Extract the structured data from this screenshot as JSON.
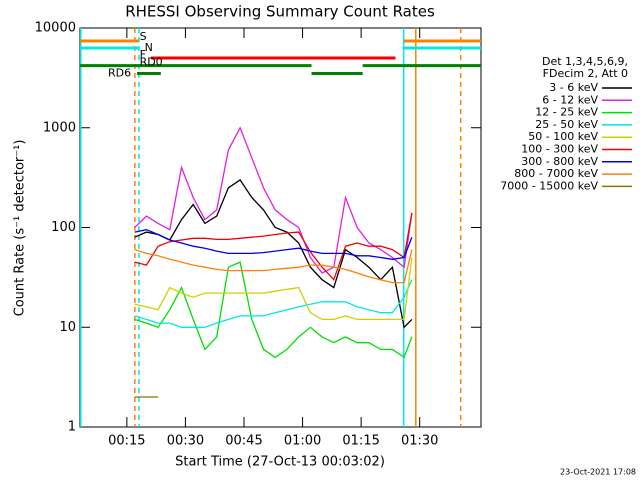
{
  "chart_data": {
    "type": "line",
    "title": "RHESSI Observing Summary Count Rates",
    "x_label": "Start Time (27-Oct-13 00:03:02)",
    "y_label": "Count Rate (s⁻¹ detector⁻¹)",
    "legend_header": [
      "Det 1,3,4,5,6,9,",
      "FDecim 2, Att 0"
    ],
    "footer": "23-Oct-2021 17:08",
    "y_log": true,
    "xlim": [
      3,
      105.7
    ],
    "ylim": [
      1,
      10000
    ],
    "xticks": [
      {
        "value": 15,
        "label": "00:15"
      },
      {
        "value": 30,
        "label": "00:30"
      },
      {
        "value": 45,
        "label": "00:45"
      },
      {
        "value": 60,
        "label": "01:00"
      },
      {
        "value": 75,
        "label": "01:15"
      },
      {
        "value": 90,
        "label": "01:30"
      }
    ],
    "yticks": [
      1,
      10,
      100,
      1000,
      10000
    ],
    "x": [
      17,
      20,
      23,
      26,
      29,
      32,
      35,
      38,
      41,
      44,
      47,
      50,
      53,
      56,
      59,
      62,
      65,
      68,
      71,
      74,
      77,
      80,
      83,
      86,
      88
    ],
    "series": [
      {
        "name": "3 - 6 keV",
        "color": "#000000",
        "values": [
          80,
          90,
          85,
          75,
          120,
          170,
          110,
          130,
          250,
          300,
          200,
          150,
          100,
          90,
          70,
          40,
          30,
          25,
          60,
          50,
          40,
          30,
          40,
          10,
          12
        ]
      },
      {
        "name": "6 - 12 keV",
        "color": "#e020e0",
        "values": [
          100,
          130,
          110,
          95,
          400,
          200,
          120,
          150,
          600,
          1000,
          500,
          250,
          150,
          120,
          100,
          50,
          35,
          40,
          200,
          100,
          70,
          60,
          50,
          40,
          140
        ]
      },
      {
        "name": "12 - 25 keV",
        "color": "#00e000",
        "values": [
          12,
          11,
          10,
          15,
          25,
          12,
          6,
          8,
          40,
          45,
          12,
          6,
          5,
          6,
          8,
          10,
          8,
          7,
          8,
          7,
          7,
          6,
          6,
          5,
          8
        ]
      },
      {
        "name": "25 - 50 keV",
        "color": "#00e8e8",
        "values": [
          13,
          12,
          11,
          11,
          10,
          10,
          10,
          11,
          12,
          13,
          13,
          13,
          14,
          15,
          16,
          17,
          18,
          18,
          18,
          16,
          15,
          14,
          14,
          20,
          30
        ]
      },
      {
        "name": "50 - 100 keV",
        "color": "#d0d000",
        "values": [
          17,
          16,
          15,
          25,
          22,
          20,
          22,
          22,
          22,
          22,
          22,
          22,
          23,
          24,
          25,
          14,
          12,
          12,
          13,
          12,
          12,
          12,
          12,
          12,
          50
        ]
      },
      {
        "name": "100 - 300 keV",
        "color": "#f00000",
        "values": [
          45,
          42,
          65,
          72,
          75,
          78,
          78,
          76,
          76,
          78,
          80,
          82,
          85,
          88,
          90,
          57,
          40,
          30,
          65,
          70,
          65,
          65,
          60,
          50,
          140
        ]
      },
      {
        "name": "300 - 800 keV",
        "color": "#0000f0",
        "values": [
          90,
          95,
          85,
          75,
          70,
          65,
          62,
          58,
          55,
          55,
          55,
          56,
          58,
          60,
          62,
          58,
          55,
          55,
          55,
          52,
          52,
          50,
          48,
          50,
          80
        ]
      },
      {
        "name": "800 - 7000 keV",
        "color": "#ff8000",
        "values": [
          60,
          55,
          52,
          48,
          45,
          42,
          40,
          38,
          37,
          37,
          37,
          37,
          38,
          39,
          40,
          42,
          42,
          40,
          38,
          35,
          32,
          30,
          28,
          28,
          60
        ]
      },
      {
        "name": "7000 - 15000 keV",
        "color": "#8b7500",
        "values": [
          2,
          2,
          2,
          null,
          null,
          null,
          null,
          null,
          null,
          null,
          null,
          null,
          null,
          null,
          null,
          null,
          null,
          null,
          null,
          null,
          null,
          null,
          null,
          null,
          null
        ]
      }
    ],
    "flags": [
      {
        "label": "S",
        "color": "#ff8000",
        "level": 7400,
        "spans": [
          [
            3,
            18
          ],
          [
            85.9,
            105.7
          ]
        ]
      },
      {
        "label": "N",
        "color": "#00e8e8",
        "level": 6300,
        "spans": [
          [
            3,
            18
          ],
          [
            85.9,
            105.7
          ]
        ]
      },
      {
        "label": "F",
        "color": "#f00000",
        "level": 5000,
        "spans": [
          [
            21.2,
            83.8
          ]
        ]
      },
      {
        "label": "RD0",
        "color": "#008000",
        "level": 4200,
        "spans": [
          [
            3,
            62.3
          ],
          [
            75.4,
            105.7
          ]
        ]
      },
      {
        "label": "RD6",
        "color": "#008000",
        "level": 3500,
        "spans": [
          [
            17.6,
            23.7
          ],
          [
            62.3,
            75.4
          ]
        ]
      }
    ],
    "vlines": [
      {
        "x": 17.05,
        "color": "#ff8000",
        "dashed": true
      },
      {
        "x": 100.5,
        "color": "#ff8000",
        "dashed": true
      },
      {
        "x": 18.1,
        "color": "#00e8e8",
        "dashed": true
      },
      {
        "x": 3.2,
        "color": "#00e8e8",
        "dashed": false
      },
      {
        "x": 85.9,
        "color": "#00e8e8",
        "dashed": false
      },
      {
        "x": 89,
        "color": "#ff8000",
        "dashed": false
      }
    ]
  }
}
